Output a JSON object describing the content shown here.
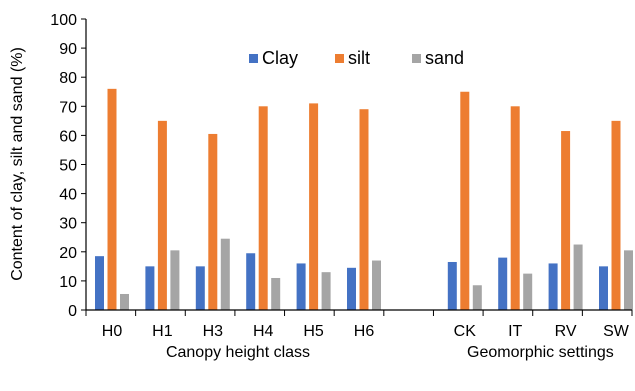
{
  "chart_data": {
    "type": "bar",
    "ylabel": "Content of clay, silt and sand (%)",
    "ylim": [
      0,
      100
    ],
    "yticks": [
      "0",
      "10",
      "20",
      "30",
      "40",
      "50",
      "60",
      "70",
      "80",
      "90",
      "100"
    ],
    "grid": false,
    "legend_position": "top-center",
    "groups": [
      {
        "label": "Canopy height class",
        "categories": [
          "H0",
          "H1",
          "H3",
          "H4",
          "H5",
          "H6"
        ]
      },
      {
        "label": "Geomorphic settings",
        "categories": [
          "CK",
          "IT",
          "RV",
          "SW"
        ]
      }
    ],
    "categories": [
      "H0",
      "H1",
      "H3",
      "H4",
      "H5",
      "H6",
      "CK",
      "IT",
      "RV",
      "SW"
    ],
    "series": [
      {
        "name": "Clay",
        "color": "#4472C4",
        "values": [
          18.5,
          15,
          15,
          19.5,
          16,
          14.5,
          16.5,
          18,
          16,
          15
        ]
      },
      {
        "name": "silt",
        "color": "#ED7D31",
        "values": [
          76,
          65,
          60.5,
          70,
          71,
          69,
          75,
          70,
          61.5,
          65
        ]
      },
      {
        "name": "sand",
        "color": "#A5A5A5",
        "values": [
          5.5,
          20.5,
          24.5,
          11,
          13,
          17,
          8.5,
          12.5,
          22.5,
          20.5
        ]
      }
    ]
  }
}
